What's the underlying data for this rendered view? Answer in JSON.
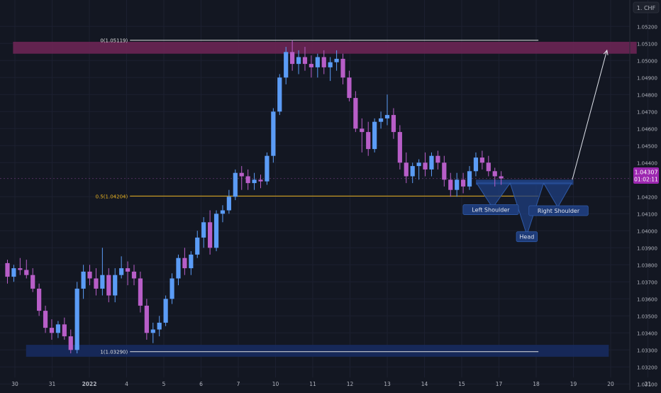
{
  "header": {
    "currency_badge": "1. CHF"
  },
  "price_tag": {
    "price": "1.04307",
    "countdown": "01:02:11"
  },
  "chart_data": {
    "type": "candlestick",
    "xlabel": "",
    "ylabel": "",
    "ylim": [
      1.031,
      1.0525
    ],
    "y_ticks": [
      "1.05200",
      "1.05100",
      "1.05000",
      "1.04900",
      "1.04800",
      "1.04700",
      "1.04600",
      "1.04500",
      "1.04400",
      "1.04200",
      "1.04100",
      "1.04000",
      "1.03900",
      "1.03800",
      "1.03700",
      "1.03600",
      "1.03500",
      "1.03400",
      "1.03300",
      "1.03200",
      "1.03100"
    ],
    "x_ticks": [
      {
        "label": "30",
        "day": 0
      },
      {
        "label": "31",
        "day": 1
      },
      {
        "label": "2022",
        "day": 2,
        "bold": true
      },
      {
        "label": "4",
        "day": 3
      },
      {
        "label": "5",
        "day": 4
      },
      {
        "label": "6",
        "day": 5
      },
      {
        "label": "7",
        "day": 6
      },
      {
        "label": "10",
        "day": 7
      },
      {
        "label": "11",
        "day": 8
      },
      {
        "label": "12",
        "day": 9
      },
      {
        "label": "13",
        "day": 10
      },
      {
        "label": "14",
        "day": 11
      },
      {
        "label": "15",
        "day": 12
      },
      {
        "label": "17",
        "day": 13
      },
      {
        "label": "18",
        "day": 14
      },
      {
        "label": "19",
        "day": 15
      },
      {
        "label": "20",
        "day": 16
      },
      {
        "label": "21",
        "day": 17
      }
    ],
    "current_price": 1.04307,
    "fib_levels": [
      {
        "label": "0(1.05119)",
        "price": 1.05119,
        "color": "#e0e0e0"
      },
      {
        "label": "0.5(1.04204)",
        "price": 1.04204,
        "color": "#e8b21f"
      },
      {
        "label": "1(1.03290)",
        "price": 1.0329,
        "color": "#e0e0e0"
      }
    ],
    "zones": [
      {
        "name": "resistance",
        "from_day": -0.05,
        "to_day": 16.7,
        "low": 1.0504,
        "high": 1.0511,
        "color": "#6b2554"
      },
      {
        "name": "support",
        "from_day": 0.3,
        "to_day": 15.95,
        "low": 1.0326,
        "high": 1.0333,
        "color": "#172a5e"
      },
      {
        "name": "neckline",
        "from_day": 12.38,
        "to_day": 15.0,
        "low": 1.0427,
        "high": 1.043,
        "color": "#1f3f80"
      }
    ],
    "annotations": [
      {
        "text": "Left Shoulder",
        "day": 12.78,
        "price": 1.04124
      },
      {
        "text": "Head",
        "day": 13.75,
        "price": 1.03965
      },
      {
        "text": "Right Shoulder",
        "day": 14.6,
        "price": 1.04118
      }
    ],
    "up_color": "#5b9cf6",
    "down_color": "#b85ec8",
    "candles": [
      {
        "o": 1.0381,
        "h": 1.0383,
        "l": 1.0369,
        "c": 1.0373
      },
      {
        "o": 1.0373,
        "h": 1.038,
        "l": 1.037,
        "c": 1.0378
      },
      {
        "o": 1.0378,
        "h": 1.0384,
        "l": 1.0374,
        "c": 1.0377
      },
      {
        "o": 1.0377,
        "h": 1.0383,
        "l": 1.0372,
        "c": 1.0374
      },
      {
        "o": 1.0374,
        "h": 1.0378,
        "l": 1.0364,
        "c": 1.0366
      },
      {
        "o": 1.0366,
        "h": 1.0369,
        "l": 1.035,
        "c": 1.0353
      },
      {
        "o": 1.0353,
        "h": 1.0356,
        "l": 1.034,
        "c": 1.0343
      },
      {
        "o": 1.0343,
        "h": 1.0348,
        "l": 1.0336,
        "c": 1.034
      },
      {
        "o": 1.034,
        "h": 1.0347,
        "l": 1.0337,
        "c": 1.0345
      },
      {
        "o": 1.0345,
        "h": 1.0349,
        "l": 1.0336,
        "c": 1.0338
      },
      {
        "o": 1.0338,
        "h": 1.0342,
        "l": 1.0328,
        "c": 1.033
      },
      {
        "o": 1.033,
        "h": 1.037,
        "l": 1.0328,
        "c": 1.0366
      },
      {
        "o": 1.0366,
        "h": 1.038,
        "l": 1.036,
        "c": 1.0376
      },
      {
        "o": 1.0376,
        "h": 1.038,
        "l": 1.0368,
        "c": 1.0372
      },
      {
        "o": 1.0372,
        "h": 1.0378,
        "l": 1.0362,
        "c": 1.0366
      },
      {
        "o": 1.0366,
        "h": 1.039,
        "l": 1.0362,
        "c": 1.0374
      },
      {
        "o": 1.0374,
        "h": 1.0378,
        "l": 1.0358,
        "c": 1.0362
      },
      {
        "o": 1.0362,
        "h": 1.0378,
        "l": 1.0358,
        "c": 1.0374
      },
      {
        "o": 1.0374,
        "h": 1.0385,
        "l": 1.0372,
        "c": 1.0378
      },
      {
        "o": 1.0378,
        "h": 1.0382,
        "l": 1.0368,
        "c": 1.0376
      },
      {
        "o": 1.0376,
        "h": 1.038,
        "l": 1.0368,
        "c": 1.0372
      },
      {
        "o": 1.0372,
        "h": 1.0376,
        "l": 1.0352,
        "c": 1.0356
      },
      {
        "o": 1.0356,
        "h": 1.036,
        "l": 1.0336,
        "c": 1.034
      },
      {
        "o": 1.034,
        "h": 1.0346,
        "l": 1.0334,
        "c": 1.0342
      },
      {
        "o": 1.0342,
        "h": 1.035,
        "l": 1.0338,
        "c": 1.0346
      },
      {
        "o": 1.0346,
        "h": 1.0362,
        "l": 1.0344,
        "c": 1.036
      },
      {
        "o": 1.036,
        "h": 1.0375,
        "l": 1.0357,
        "c": 1.0372
      },
      {
        "o": 1.0372,
        "h": 1.0386,
        "l": 1.0368,
        "c": 1.0384
      },
      {
        "o": 1.0384,
        "h": 1.039,
        "l": 1.0374,
        "c": 1.0378
      },
      {
        "o": 1.0378,
        "h": 1.0388,
        "l": 1.0374,
        "c": 1.0386
      },
      {
        "o": 1.0386,
        "h": 1.04,
        "l": 1.0384,
        "c": 1.0396
      },
      {
        "o": 1.0396,
        "h": 1.0408,
        "l": 1.039,
        "c": 1.0405
      },
      {
        "o": 1.0405,
        "h": 1.0412,
        "l": 1.0386,
        "c": 1.039
      },
      {
        "o": 1.039,
        "h": 1.0412,
        "l": 1.0388,
        "c": 1.041
      },
      {
        "o": 1.041,
        "h": 1.0415,
        "l": 1.0405,
        "c": 1.0412
      },
      {
        "o": 1.0412,
        "h": 1.0424,
        "l": 1.041,
        "c": 1.042
      },
      {
        "o": 1.042,
        "h": 1.0436,
        "l": 1.0418,
        "c": 1.0434
      },
      {
        "o": 1.0434,
        "h": 1.0438,
        "l": 1.0424,
        "c": 1.0432
      },
      {
        "o": 1.0432,
        "h": 1.0436,
        "l": 1.0424,
        "c": 1.0428
      },
      {
        "o": 1.0428,
        "h": 1.0434,
        "l": 1.0424,
        "c": 1.043
      },
      {
        "o": 1.043,
        "h": 1.0433,
        "l": 1.0425,
        "c": 1.0429
      },
      {
        "o": 1.0429,
        "h": 1.0446,
        "l": 1.0427,
        "c": 1.0444
      },
      {
        "o": 1.0444,
        "h": 1.0472,
        "l": 1.044,
        "c": 1.047
      },
      {
        "o": 1.047,
        "h": 1.0492,
        "l": 1.0468,
        "c": 1.049
      },
      {
        "o": 1.049,
        "h": 1.0508,
        "l": 1.0486,
        "c": 1.0505
      },
      {
        "o": 1.0505,
        "h": 1.05119,
        "l": 1.0494,
        "c": 1.0498
      },
      {
        "o": 1.0498,
        "h": 1.0506,
        "l": 1.0492,
        "c": 1.0502
      },
      {
        "o": 1.0502,
        "h": 1.0508,
        "l": 1.0494,
        "c": 1.0498
      },
      {
        "o": 1.0498,
        "h": 1.0503,
        "l": 1.049,
        "c": 1.0496
      },
      {
        "o": 1.0496,
        "h": 1.0504,
        "l": 1.049,
        "c": 1.0502
      },
      {
        "o": 1.0502,
        "h": 1.0506,
        "l": 1.0492,
        "c": 1.0496
      },
      {
        "o": 1.0496,
        "h": 1.0502,
        "l": 1.0488,
        "c": 1.0499
      },
      {
        "o": 1.0499,
        "h": 1.0506,
        "l": 1.0494,
        "c": 1.0501
      },
      {
        "o": 1.0501,
        "h": 1.0504,
        "l": 1.0486,
        "c": 1.049
      },
      {
        "o": 1.049,
        "h": 1.0494,
        "l": 1.0476,
        "c": 1.0478
      },
      {
        "o": 1.0478,
        "h": 1.0482,
        "l": 1.0458,
        "c": 1.046
      },
      {
        "o": 1.046,
        "h": 1.0466,
        "l": 1.0446,
        "c": 1.0458
      },
      {
        "o": 1.0458,
        "h": 1.0464,
        "l": 1.0444,
        "c": 1.0448
      },
      {
        "o": 1.0448,
        "h": 1.0466,
        "l": 1.0446,
        "c": 1.0464
      },
      {
        "o": 1.0464,
        "h": 1.047,
        "l": 1.046,
        "c": 1.0466
      },
      {
        "o": 1.0466,
        "h": 1.048,
        "l": 1.0462,
        "c": 1.0468
      },
      {
        "o": 1.0468,
        "h": 1.0472,
        "l": 1.0454,
        "c": 1.0458
      },
      {
        "o": 1.0458,
        "h": 1.0462,
        "l": 1.0436,
        "c": 1.044
      },
      {
        "o": 1.044,
        "h": 1.0446,
        "l": 1.0428,
        "c": 1.0432
      },
      {
        "o": 1.0432,
        "h": 1.044,
        "l": 1.0428,
        "c": 1.0438
      },
      {
        "o": 1.0438,
        "h": 1.0442,
        "l": 1.043,
        "c": 1.044
      },
      {
        "o": 1.044,
        "h": 1.0446,
        "l": 1.0432,
        "c": 1.0436
      },
      {
        "o": 1.0436,
        "h": 1.0446,
        "l": 1.0432,
        "c": 1.0444
      },
      {
        "o": 1.0444,
        "h": 1.0447,
        "l": 1.0436,
        "c": 1.044
      },
      {
        "o": 1.044,
        "h": 1.0444,
        "l": 1.0426,
        "c": 1.043
      },
      {
        "o": 1.043,
        "h": 1.0434,
        "l": 1.042,
        "c": 1.0424
      },
      {
        "o": 1.0424,
        "h": 1.0434,
        "l": 1.042,
        "c": 1.043
      },
      {
        "o": 1.043,
        "h": 1.0434,
        "l": 1.0422,
        "c": 1.0426
      },
      {
        "o": 1.0426,
        "h": 1.0438,
        "l": 1.0424,
        "c": 1.0435
      },
      {
        "o": 1.0435,
        "h": 1.0446,
        "l": 1.0432,
        "c": 1.0443
      },
      {
        "o": 1.0443,
        "h": 1.0447,
        "l": 1.0436,
        "c": 1.044
      },
      {
        "o": 1.044,
        "h": 1.0444,
        "l": 1.0432,
        "c": 1.0435
      },
      {
        "o": 1.0435,
        "h": 1.0437,
        "l": 1.0426,
        "c": 1.0432
      },
      {
        "o": 1.0432,
        "h": 1.0435,
        "l": 1.0427,
        "c": 1.04307
      }
    ]
  }
}
